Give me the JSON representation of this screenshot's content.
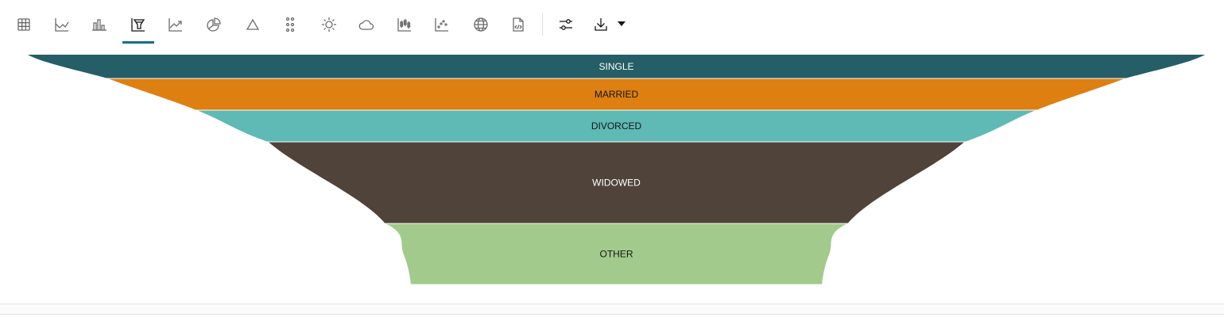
{
  "toolbar": {
    "items": [
      {
        "icon": "table-icon",
        "active": false
      },
      {
        "icon": "line-chart-icon",
        "active": false
      },
      {
        "icon": "bar-chart-icon",
        "active": false
      },
      {
        "icon": "funnel-chart-icon",
        "active": true
      },
      {
        "icon": "trend-chart-icon",
        "active": false
      },
      {
        "icon": "pie-chart-icon",
        "active": false
      },
      {
        "icon": "pyramid-icon",
        "active": false
      },
      {
        "icon": "dots-grid-icon",
        "active": false
      },
      {
        "icon": "sunburst-icon",
        "active": false
      },
      {
        "icon": "cloud-icon",
        "active": false
      },
      {
        "icon": "candlestick-icon",
        "active": false
      },
      {
        "icon": "scatter-icon",
        "active": false
      },
      {
        "icon": "globe-icon",
        "active": false
      },
      {
        "icon": "code-file-icon",
        "active": false
      }
    ],
    "settings_icon": "sliders-icon",
    "download_icon": "download-icon",
    "dropdown_icon": "caret-down-icon"
  },
  "chart_data": {
    "type": "funnel",
    "categories": [
      "SINGLE",
      "MARRIED",
      "DIVORCED",
      "WIDOWED",
      "OTHER"
    ],
    "values": [
      30,
      40,
      40,
      103,
      77
    ],
    "colors": [
      "#255e66",
      "#dd7f11",
      "#5fb9b5",
      "#4f433a",
      "#a2ca8c"
    ],
    "label_colors": [
      "#ffffff",
      "#161513",
      "#161513",
      "#ffffff",
      "#161513"
    ]
  }
}
